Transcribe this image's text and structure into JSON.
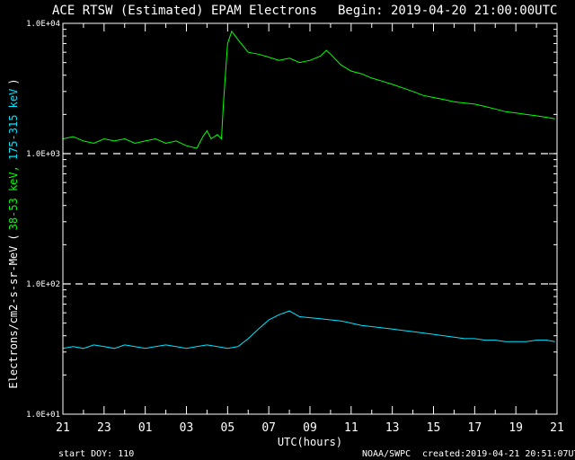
{
  "chart_data": {
    "type": "line",
    "title": "ACE RTSW (Estimated) EPAM Electrons",
    "begin_label": "Begin: 2019-04-20 21:00:00UTC",
    "xlabel": "UTC(hours)",
    "ylabel_prefix": "Electrons/cm2-s-sr-MeV",
    "ylabel_open": "(",
    "ylabel_series_1": "38-53 keV,",
    "ylabel_series_2": "175-315 keV",
    "ylabel_close": ")",
    "y_scale": "log",
    "ylim": [
      10,
      10000
    ],
    "y_ticks": [
      {
        "value": 10,
        "label": "1.0E+01"
      },
      {
        "value": 100,
        "label": "1.0E+02"
      },
      {
        "value": 1000,
        "label": "1.0E+03"
      },
      {
        "value": 10000,
        "label": "1.0E+04"
      }
    ],
    "dashed_reference_lines": [
      100,
      1000
    ],
    "xlim_hours": [
      0,
      24
    ],
    "x_ticks": [
      {
        "hours": 0,
        "label": "21"
      },
      {
        "hours": 2,
        "label": "23"
      },
      {
        "hours": 4,
        "label": "01"
      },
      {
        "hours": 6,
        "label": "03"
      },
      {
        "hours": 8,
        "label": "05"
      },
      {
        "hours": 10,
        "label": "07"
      },
      {
        "hours": 12,
        "label": "09"
      },
      {
        "hours": 14,
        "label": "11"
      },
      {
        "hours": 16,
        "label": "13"
      },
      {
        "hours": 18,
        "label": "15"
      },
      {
        "hours": 20,
        "label": "17"
      },
      {
        "hours": 22,
        "label": "19"
      },
      {
        "hours": 24,
        "label": "21"
      }
    ],
    "start_doy_label": "start DOY:  110",
    "source_label": "NOAA/SWPC",
    "created_label": "created:2019-04-21 20:51:07UTC",
    "series": [
      {
        "color": "#00ff00",
        "points": [
          [
            0,
            1300
          ],
          [
            0.5,
            1350
          ],
          [
            1,
            1250
          ],
          [
            1.5,
            1200
          ],
          [
            2,
            1300
          ],
          [
            2.5,
            1250
          ],
          [
            3,
            1300
          ],
          [
            3.5,
            1200
          ],
          [
            4,
            1250
          ],
          [
            4.5,
            1300
          ],
          [
            5,
            1200
          ],
          [
            5.5,
            1250
          ],
          [
            6,
            1150
          ],
          [
            6.5,
            1100
          ],
          [
            6.8,
            1350
          ],
          [
            7,
            1500
          ],
          [
            7.2,
            1300
          ],
          [
            7.5,
            1400
          ],
          [
            7.7,
            1300
          ],
          [
            7.8,
            2500
          ],
          [
            8,
            7000
          ],
          [
            8.2,
            8700
          ],
          [
            8.5,
            7500
          ],
          [
            9,
            6000
          ],
          [
            9.5,
            5800
          ],
          [
            10,
            5500
          ],
          [
            10.5,
            5200
          ],
          [
            11,
            5400
          ],
          [
            11.5,
            5000
          ],
          [
            12,
            5200
          ],
          [
            12.5,
            5600
          ],
          [
            12.8,
            6200
          ],
          [
            13,
            5800
          ],
          [
            13.5,
            4800
          ],
          [
            14,
            4300
          ],
          [
            14.5,
            4100
          ],
          [
            15,
            3800
          ],
          [
            15.5,
            3600
          ],
          [
            16,
            3400
          ],
          [
            16.5,
            3200
          ],
          [
            17,
            3000
          ],
          [
            17.5,
            2800
          ],
          [
            18,
            2700
          ],
          [
            18.5,
            2600
          ],
          [
            19,
            2500
          ],
          [
            19.5,
            2450
          ],
          [
            20,
            2400
          ],
          [
            20.5,
            2300
          ],
          [
            21,
            2200
          ],
          [
            21.5,
            2100
          ],
          [
            22,
            2050
          ],
          [
            22.5,
            2000
          ],
          [
            23,
            1950
          ],
          [
            23.5,
            1900
          ],
          [
            23.9,
            1850
          ]
        ]
      },
      {
        "color": "#00e5ff",
        "points": [
          [
            0,
            32
          ],
          [
            0.5,
            33
          ],
          [
            1,
            32
          ],
          [
            1.5,
            34
          ],
          [
            2,
            33
          ],
          [
            2.5,
            32
          ],
          [
            3,
            34
          ],
          [
            3.5,
            33
          ],
          [
            4,
            32
          ],
          [
            4.5,
            33
          ],
          [
            5,
            34
          ],
          [
            5.5,
            33
          ],
          [
            6,
            32
          ],
          [
            6.5,
            33
          ],
          [
            7,
            34
          ],
          [
            7.5,
            33
          ],
          [
            8,
            32
          ],
          [
            8.5,
            33
          ],
          [
            9,
            38
          ],
          [
            9.5,
            45
          ],
          [
            10,
            53
          ],
          [
            10.5,
            58
          ],
          [
            11,
            62
          ],
          [
            11.5,
            56
          ],
          [
            12,
            55
          ],
          [
            12.5,
            54
          ],
          [
            13,
            53
          ],
          [
            13.5,
            52
          ],
          [
            14,
            50
          ],
          [
            14.5,
            48
          ],
          [
            15,
            47
          ],
          [
            15.5,
            46
          ],
          [
            16,
            45
          ],
          [
            16.5,
            44
          ],
          [
            17,
            43
          ],
          [
            17.5,
            42
          ],
          [
            18,
            41
          ],
          [
            18.5,
            40
          ],
          [
            19,
            39
          ],
          [
            19.5,
            38
          ],
          [
            20,
            38
          ],
          [
            20.5,
            37
          ],
          [
            21,
            37
          ],
          [
            21.5,
            36
          ],
          [
            22,
            36
          ],
          [
            22.5,
            36
          ],
          [
            23,
            37
          ],
          [
            23.5,
            37
          ],
          [
            23.9,
            36
          ]
        ]
      }
    ]
  }
}
